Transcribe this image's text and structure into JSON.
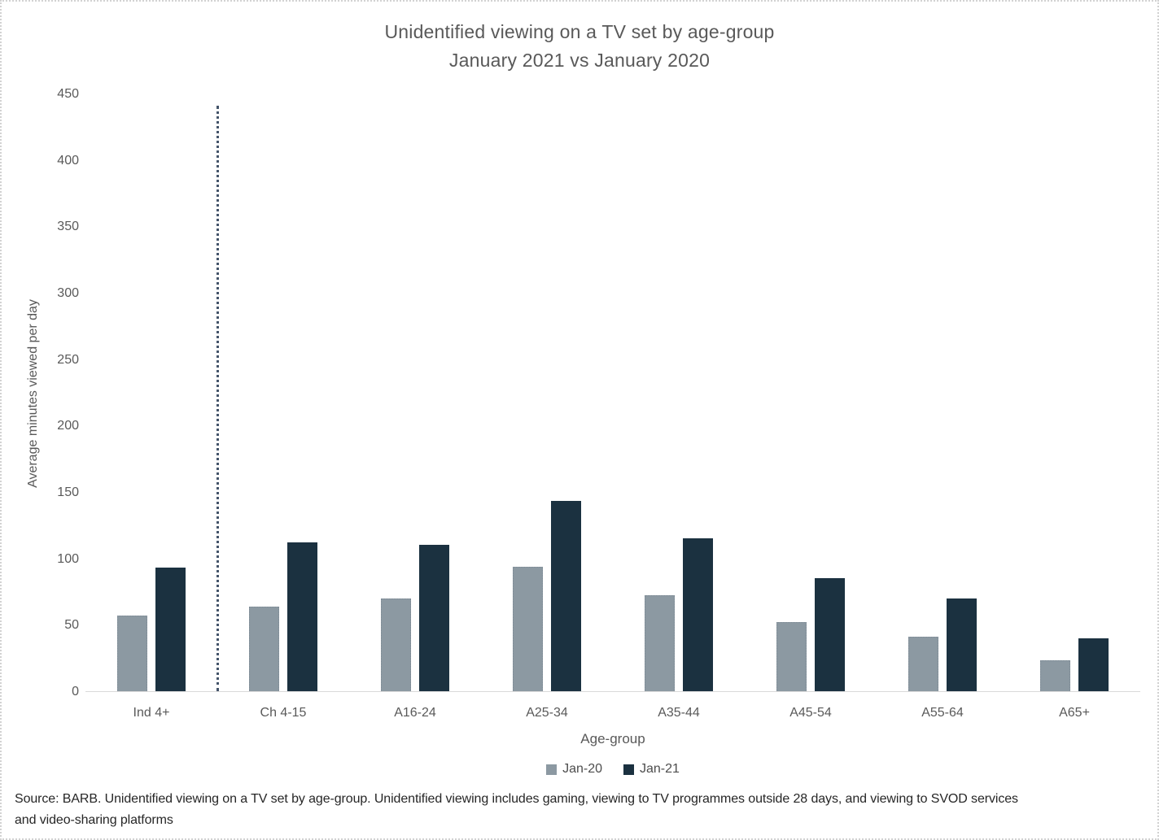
{
  "title": {
    "line1": "Unidentified viewing on a TV set by age-group",
    "line2": "January 2021 vs January 2020"
  },
  "chart_data": {
    "type": "bar",
    "title": "Unidentified viewing on a TV set by age-group January 2021 vs January 2020",
    "categories": [
      "Ind 4+",
      "Ch 4-15",
      "A16-24",
      "A25-34",
      "A35-44",
      "A45-54",
      "A55-64",
      "A65+"
    ],
    "series": [
      {
        "name": "Jan-20",
        "color": "#8c99a2",
        "values": [
          57,
          64,
          70,
          94,
          72,
          52,
          41,
          23
        ]
      },
      {
        "name": "Jan-21",
        "color": "#1b3140",
        "values": [
          93,
          112,
          110,
          143,
          115,
          85,
          70,
          40
        ]
      }
    ],
    "xlabel": "Age-group",
    "ylabel": "Average minutes viewed per day",
    "ylim": [
      0,
      450
    ],
    "ytick_interval": 50,
    "grid": "off",
    "legend_position": "bottom",
    "separator": {
      "type": "dotted-vertical-line",
      "after_category_index": 0,
      "color": "#44546a"
    }
  },
  "source": {
    "line1": "Source: BARB. Unidentified viewing on a TV set by age-group. Unidentified viewing includes gaming, viewing to TV programmes outside 28 days, and viewing to SVOD services",
    "line2": "and video-sharing platforms"
  },
  "colors": {
    "jan20_bar": "#8c99a2",
    "jan21_bar": "#1b3140",
    "axis_text": "#595959",
    "source_text": "#262626",
    "axis_line": "#d9d9d9",
    "separator_line": "#44546a",
    "page_border": "#d2d2d2"
  }
}
